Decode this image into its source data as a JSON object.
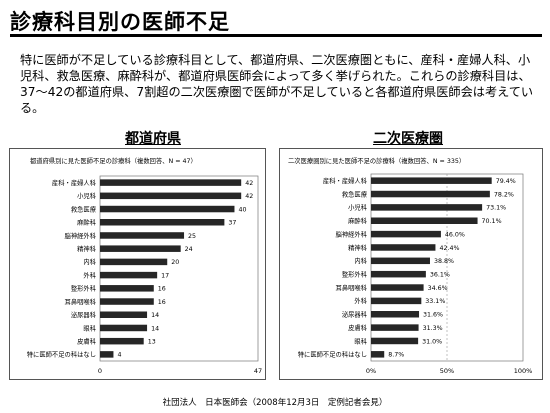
{
  "slide": {
    "title": "診療科目別の医師不足",
    "paragraph": "特に医師が不足している診療科目として、都道府県、二次医療圏ともに、産科・産婦人科、小児科、救急医療、麻酔科が、都道府県医師会によって多く挙げられた。これらの診療科目は、37～42の都道府県、7割超の二次医療圏で医師が不足していると各都道府県医師会は考えている。",
    "left_heading": "都道府県",
    "right_heading": "二次医療圏",
    "footer": "社団法人　日本医師会（2008年12月3日　定例記者会見）"
  },
  "chart_data": [
    {
      "type": "bar",
      "orientation": "horizontal",
      "title": "都道府県別に見た医師不足の診療科（複数回答、N = 47）",
      "categories": [
        "産科・産婦人科",
        "小児科",
        "救急医療",
        "麻酔科",
        "脳神経外科",
        "精神科",
        "内科",
        "外科",
        "整形外科",
        "耳鼻咽喉科",
        "泌尿器科",
        "眼科",
        "皮膚科",
        "特に医師不足の科はなし"
      ],
      "values": [
        42,
        42,
        40,
        37,
        25,
        24,
        20,
        17,
        16,
        16,
        14,
        14,
        13,
        4
      ],
      "value_labels": [
        "42",
        "42",
        "40",
        "37",
        "25",
        "24",
        "20",
        "17",
        "16",
        "16",
        "14",
        "14",
        "13",
        "4"
      ],
      "xlim": [
        0,
        47
      ],
      "xticks": [
        "0",
        "47"
      ],
      "bar_color": "#262626",
      "grid": false
    },
    {
      "type": "bar",
      "orientation": "horizontal",
      "title": "二次医療圏別に見た医師不足の診療科（複数回答、N = 335）",
      "categories": [
        "産科・産婦人科",
        "救急医療",
        "小児科",
        "麻酔科",
        "脳神経外科",
        "精神科",
        "内科",
        "整形外科",
        "耳鼻咽喉科",
        "外科",
        "泌尿器科",
        "皮膚科",
        "眼科",
        "特に医師不足の科はなし"
      ],
      "values": [
        79.4,
        78.2,
        73.1,
        70.1,
        46.0,
        42.4,
        38.8,
        36.1,
        34.6,
        33.1,
        31.6,
        31.3,
        31.0,
        8.7
      ],
      "value_labels": [
        "79.4%",
        "78.2%",
        "73.1%",
        "70.1%",
        "46.0%",
        "42.4%",
        "38.8%",
        "36.1%",
        "34.6%",
        "33.1%",
        "31.6%",
        "31.3%",
        "31.0%",
        "8.7%"
      ],
      "xlim": [
        0,
        100
      ],
      "xticks": [
        "0%",
        "50%",
        "100%"
      ],
      "bar_color": "#262626",
      "grid": true
    }
  ]
}
